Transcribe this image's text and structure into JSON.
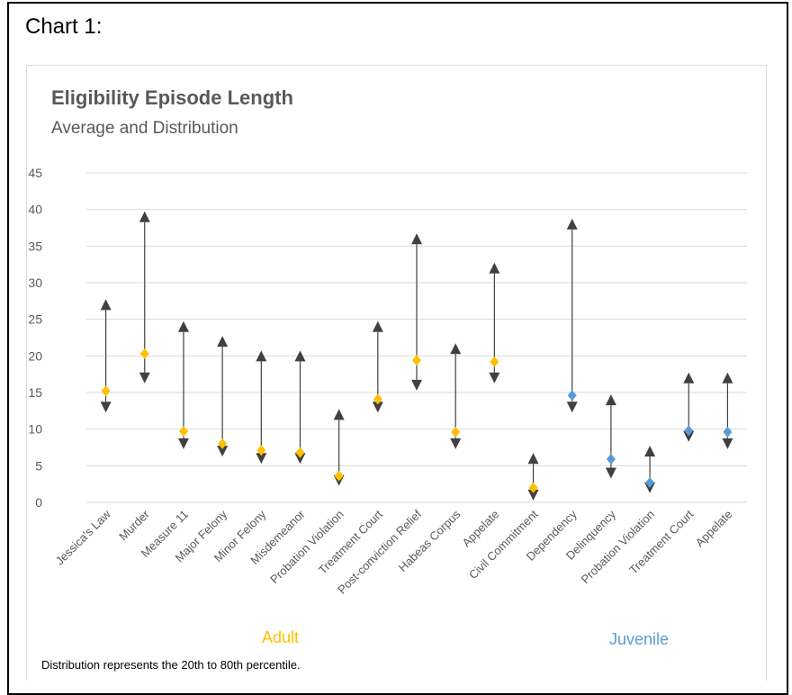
{
  "page": {
    "heading": "Chart 1:"
  },
  "chart_data": {
    "type": "scatter",
    "title": "Eligibility Episode Length",
    "subtitle": "Average and Distribution",
    "xlabel": "",
    "ylabel": "",
    "ylim": [
      0,
      45
    ],
    "yticks": [
      "0",
      "5",
      "10",
      "15",
      "20",
      "25",
      "30",
      "35",
      "40",
      "45"
    ],
    "grid": true,
    "categories": [
      "Jessica's Law",
      "Murder",
      "Measure 11",
      "Major Felony",
      "Minor Felony",
      "Misdemeanor",
      "Probation Violation",
      "Treatment Court",
      "Post-conviction Relief",
      "Habeas Corpus",
      "Appelate",
      "Civil Commitment",
      "Dependency",
      "Delinquency",
      "Probation Violation",
      "Treatment Court",
      "Appelate"
    ],
    "groups": [
      "Adult",
      "Adult",
      "Adult",
      "Adult",
      "Adult",
      "Adult",
      "Adult",
      "Adult",
      "Adult",
      "Adult",
      "Adult",
      "Adult",
      "Juvenile",
      "Juvenile",
      "Juvenile",
      "Juvenile",
      "Juvenile"
    ],
    "series": [
      {
        "name": "",
        "role": "average",
        "values": [
          15.2,
          20.3,
          9.7,
          8.0,
          7.1,
          6.8,
          3.6,
          14.1,
          19.4,
          9.6,
          19.2,
          2.0,
          14.6,
          5.9,
          2.7,
          9.8,
          9.6
        ]
      },
      {
        "name": "",
        "role": "20th percentile",
        "values": [
          13,
          17,
          8,
          7,
          6,
          6,
          3,
          13,
          16,
          8,
          17,
          1,
          13,
          4,
          2,
          9,
          8
        ]
      },
      {
        "name": "",
        "role": "80th percentile",
        "values": [
          27,
          39,
          24,
          22,
          20,
          20,
          12,
          24,
          36,
          21,
          32,
          6,
          38,
          14,
          7,
          17,
          17
        ]
      }
    ],
    "group_labels": [
      {
        "text": "Adult",
        "color": "#ffc000"
      },
      {
        "text": "Juvenile",
        "color": "#5b9bd5"
      }
    ],
    "colors": {
      "adult": "#ffc000",
      "juvenile": "#5b9bd5",
      "range": "#404040",
      "grid": "#d9d9d9",
      "tick": "#595959"
    },
    "footnote": "Distribution represents the 20th to 80th percentile."
  }
}
